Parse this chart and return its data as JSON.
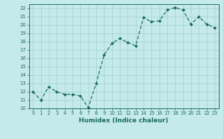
{
  "x": [
    0,
    1,
    2,
    3,
    4,
    5,
    6,
    7,
    8,
    9,
    10,
    11,
    12,
    13,
    14,
    15,
    16,
    17,
    18,
    19,
    20,
    21,
    22,
    23
  ],
  "y": [
    12,
    11,
    12.6,
    12,
    11.7,
    11.7,
    11.5,
    10.1,
    13,
    16.4,
    17.8,
    18.4,
    17.9,
    17.5,
    20.9,
    20.4,
    20.5,
    21.8,
    22.1,
    21.8,
    20.1,
    21.0,
    20.1,
    19.7
  ],
  "line_color": "#1a6b5e",
  "marker": "D",
  "marker_size": 2.0,
  "bg_color": "#c5eaea",
  "grid_color": "#a0d0d0",
  "xlabel": "Humidex (Indice chaleur)",
  "xlim": [
    -0.5,
    23.5
  ],
  "ylim": [
    10,
    22.5
  ],
  "yticks": [
    10,
    11,
    12,
    13,
    14,
    15,
    16,
    17,
    18,
    19,
    20,
    21,
    22
  ],
  "xticks": [
    0,
    1,
    2,
    3,
    4,
    5,
    6,
    7,
    8,
    9,
    10,
    11,
    12,
    13,
    14,
    15,
    16,
    17,
    18,
    19,
    20,
    21,
    22,
    23
  ],
  "tick_fontsize": 5.0,
  "xlabel_fontsize": 6.5,
  "line_width": 0.9
}
